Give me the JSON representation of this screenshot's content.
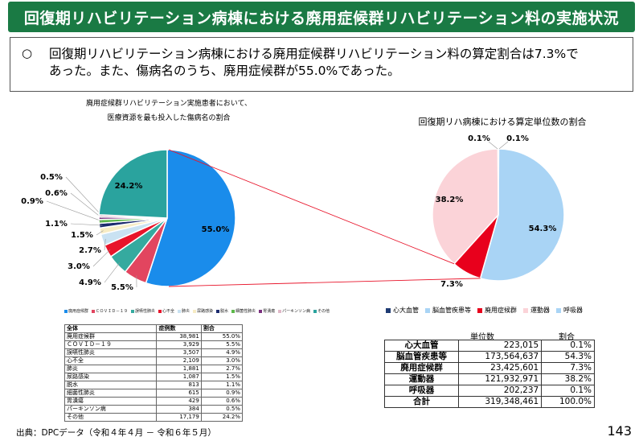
{
  "title": "回復期リハビリテーション病棟における廃用症候群リハビリテーション料の実施状況",
  "summary": {
    "bullet": "○",
    "line1": "回復期リハビリテーション病棟における廃用症候群リハビリテーション料の算定割合は7.3%で",
    "line2": "あった。また、傷病名のうち、廃用症候群が55.0%であった。"
  },
  "left_chart_title": {
    "line1": "廃用症候群リハビリテーション実施患者において、",
    "line2": "医療資源を最も投入した傷病名の割合"
  },
  "right_chart_title": "回復期リハ病棟における算定単位数の割合",
  "chart_data": [
    {
      "type": "pie",
      "title": "",
      "categories": [
        "廃用症候群",
        "ＣＯＶＩＤ－１９",
        "誤嚥性肺炎",
        "心不全",
        "肺炎",
        "尿路感染",
        "脱水",
        "細菌性肺炎",
        "胃潰瘍",
        "パーキンソン病",
        "その他"
      ],
      "values": [
        55.0,
        5.5,
        4.9,
        3.0,
        2.7,
        1.5,
        1.1,
        0.9,
        0.6,
        0.5,
        24.2
      ],
      "labels": [
        "55.0%",
        "5.5%",
        "4.9%",
        "3.0%",
        "2.7%",
        "1.5%",
        "1.1%",
        "0.9%",
        "0.6%",
        "0.5%",
        "24.2%"
      ],
      "colors": [
        "#1a8ceb",
        "#e2455f",
        "#35aa9f",
        "#e8142a",
        "#c9e2f2",
        "#f7ecc4",
        "#1c2b6e",
        "#5cb84a",
        "#7a2e7e",
        "#e0b8c8",
        "#2aa39e"
      ],
      "legend": [
        "廃用症候群",
        "ＣＯＶＩＤ－１９",
        "誤嚥性肺炎",
        "心不全",
        "肺炎",
        "尿路感染",
        "脱水",
        "細菌性肺炎",
        "胃潰瘍",
        "パーキンソン病",
        "その他"
      ],
      "legend_position": "bottom"
    },
    {
      "type": "pie",
      "title": "",
      "categories": [
        "心大血管",
        "脳血管疾患等",
        "廃用症候群",
        "運動器",
        "呼吸器"
      ],
      "values": [
        0.1,
        54.3,
        7.3,
        38.2,
        0.1
      ],
      "labels": [
        "0.1%",
        "54.3%",
        "7.3%",
        "38.2%",
        "0.1%"
      ],
      "colors": [
        "#1f3b73",
        "#a9d4f5",
        "#e8001c",
        "#fbd3d8",
        "#a9d4f5"
      ],
      "legend": [
        "心大血管",
        "脳血管疾患等",
        "廃用症候群",
        "運動器",
        "呼吸器"
      ],
      "legend_position": "top"
    }
  ],
  "table_left": {
    "headers": [
      "全体",
      "症例数",
      "割合"
    ],
    "rows": [
      [
        "廃用症候群",
        "38,981",
        "55.0%"
      ],
      [
        "ＣＯＶＩＤ－１９",
        "3,929",
        "5.5%"
      ],
      [
        "誤嚥性肺炎",
        "3,507",
        "4.9%"
      ],
      [
        "心不全",
        "2,109",
        "3.0%"
      ],
      [
        "肺炎",
        "1,881",
        "2.7%"
      ],
      [
        "尿路感染",
        "1,087",
        "1.5%"
      ],
      [
        "脱水",
        "813",
        "1.1%"
      ],
      [
        "細菌性肺炎",
        "615",
        "0.9%"
      ],
      [
        "胃潰瘍",
        "429",
        "0.6%"
      ],
      [
        "パーキンソン病",
        "384",
        "0.5%"
      ],
      [
        "その他",
        "17,179",
        "24.2%"
      ]
    ]
  },
  "table_right": {
    "headers": [
      "単位数",
      "割合"
    ],
    "rows": [
      [
        "心大血管",
        "223,015",
        "0.1%"
      ],
      [
        "脳血管疾患等",
        "173,564,637",
        "54.3%"
      ],
      [
        "廃用症候群",
        "23,425,601",
        "7.3%"
      ],
      [
        "運動器",
        "121,932,971",
        "38.2%"
      ],
      [
        "呼吸器",
        "202,237",
        "0.1%"
      ],
      [
        "合計",
        "319,348,461",
        "100.0%"
      ]
    ]
  },
  "source": "出典：DPCデータ（令和４年４月 － 令和６年５月）",
  "page_number": "143"
}
